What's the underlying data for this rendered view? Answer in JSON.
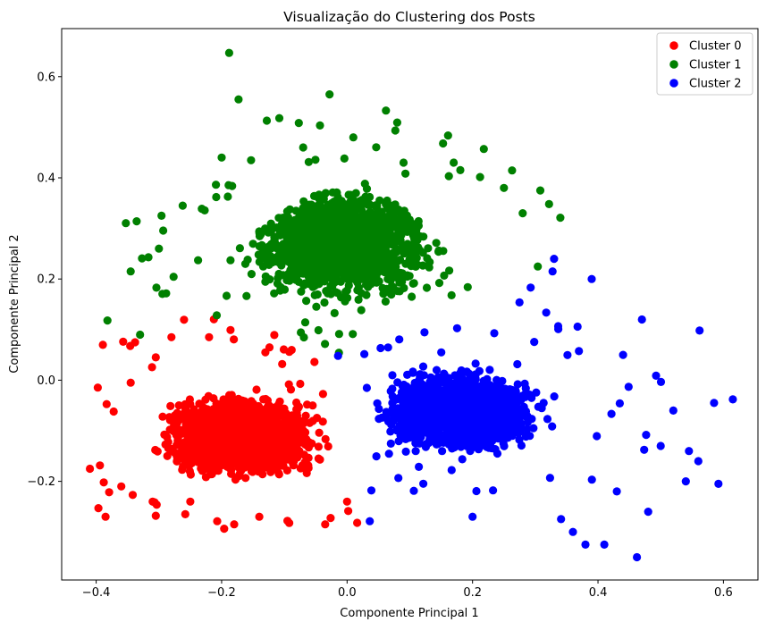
{
  "chart_data": {
    "type": "scatter",
    "title": "Visualização do Clustering dos Posts",
    "xlabel": "Componente Principal 1",
    "ylabel": "Componente Principal 2",
    "xlim": [
      -0.455,
      0.655
    ],
    "ylim": [
      -0.395,
      0.695
    ],
    "xticks": [
      -0.4,
      -0.2,
      0.0,
      0.2,
      0.4,
      0.6
    ],
    "xtick_labels": [
      "−0.4",
      "−0.2",
      "0.0",
      "0.2",
      "0.4",
      "0.6"
    ],
    "yticks": [
      -0.2,
      0.0,
      0.2,
      0.4,
      0.6
    ],
    "ytick_labels": [
      "−0.2",
      "0.0",
      "0.2",
      "0.4",
      "0.6"
    ],
    "grid": false,
    "legend_position": "top-right",
    "series": [
      {
        "name": "Cluster 0",
        "color": "#ff0000",
        "region": {
          "x_range": [
            -0.41,
            0.01
          ],
          "y_range": [
            -0.29,
            0.09
          ]
        },
        "outliers": [
          [
            -0.41,
            -0.175
          ],
          [
            -0.385,
            -0.27
          ],
          [
            -0.372,
            -0.062
          ],
          [
            -0.345,
            -0.005
          ],
          [
            -0.338,
            0.075
          ],
          [
            -0.305,
            -0.268
          ],
          [
            -0.258,
            -0.265
          ],
          [
            -0.18,
            -0.285
          ],
          [
            -0.095,
            -0.278
          ],
          [
            -0.035,
            -0.285
          ],
          [
            -0.305,
            0.045
          ],
          [
            -0.28,
            0.085
          ],
          [
            -0.36,
            -0.21
          ],
          [
            0.0,
            -0.24
          ],
          [
            -0.22,
            0.085
          ],
          [
            -0.31,
            -0.24
          ],
          [
            -0.25,
            -0.24
          ],
          [
            -0.14,
            -0.27
          ]
        ]
      },
      {
        "name": "Cluster 1",
        "color": "#008000",
        "region": {
          "x_range": [
            -0.38,
            0.35
          ],
          "y_range": [
            -0.04,
            0.65
          ]
        },
        "outliers": [
          [
            -0.188,
            0.647
          ],
          [
            -0.173,
            0.555
          ],
          [
            -0.128,
            0.513
          ],
          [
            -0.108,
            0.518
          ],
          [
            -0.028,
            0.565
          ],
          [
            0.062,
            0.533
          ],
          [
            -0.382,
            0.118
          ],
          [
            -0.345,
            0.215
          ],
          [
            -0.262,
            0.345
          ],
          [
            0.153,
            0.468
          ],
          [
            0.218,
            0.457
          ],
          [
            0.308,
            0.375
          ],
          [
            0.322,
            0.348
          ],
          [
            -0.2,
            0.44
          ],
          [
            -0.07,
            0.46
          ],
          [
            0.01,
            0.48
          ],
          [
            0.09,
            0.43
          ],
          [
            0.17,
            0.43
          ],
          [
            0.25,
            0.38
          ],
          [
            0.28,
            0.33
          ],
          [
            -0.33,
            0.09
          ],
          [
            -0.3,
            0.26
          ]
        ]
      },
      {
        "name": "Cluster 2",
        "color": "#0000ff",
        "region": {
          "x_range": [
            -0.01,
            0.62
          ],
          "y_range": [
            -0.35,
            0.28
          ]
        },
        "outliers": [
          [
            0.615,
            -0.038
          ],
          [
            0.592,
            -0.205
          ],
          [
            0.585,
            -0.045
          ],
          [
            0.562,
            0.098
          ],
          [
            0.462,
            -0.35
          ],
          [
            0.38,
            -0.325
          ],
          [
            0.41,
            -0.325
          ],
          [
            0.545,
            -0.14
          ],
          [
            0.52,
            -0.06
          ],
          [
            0.5,
            -0.13
          ],
          [
            0.48,
            -0.26
          ],
          [
            0.43,
            -0.22
          ],
          [
            0.33,
            0.24
          ],
          [
            0.39,
            0.2
          ],
          [
            0.47,
            0.12
          ],
          [
            0.56,
            -0.16
          ],
          [
            0.54,
            -0.2
          ],
          [
            0.44,
            0.05
          ],
          [
            0.36,
            -0.3
          ],
          [
            0.2,
            -0.27
          ]
        ]
      }
    ]
  }
}
